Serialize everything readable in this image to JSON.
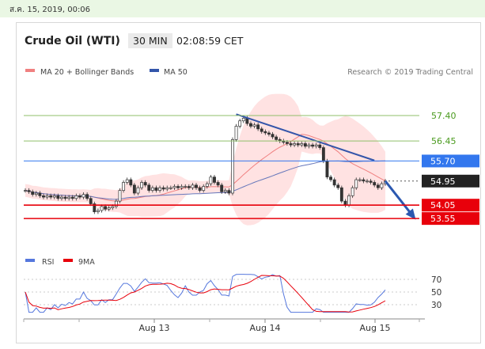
{
  "date_stamp": "ส.ค. 15, 2019, 00:06",
  "header": {
    "title": "Crude Oil (WTI)",
    "timeframe": "30 MIN",
    "clock": "02:08:59 CET"
  },
  "legend": {
    "ma20": "MA 20 + Bollinger Bands",
    "ma50": "MA 50",
    "credit": "Research © 2019 Trading Central"
  },
  "rsi_legend": {
    "rsi": "RSI",
    "ma9": "9MA"
  },
  "colors": {
    "resistance": "#8fbf6a",
    "pivot": "#3377ee",
    "support": "#e8000b",
    "current": "#222222",
    "bands": "#ffd8d8",
    "ma20": "#f08080",
    "ma50": "#6677bb",
    "trend": "#3355aa"
  },
  "chart_data": [
    {
      "type": "candlestick",
      "title": "Crude Oil (WTI)",
      "levels": [
        {
          "value": 57.4,
          "label": "57.40",
          "kind": "resistance"
        },
        {
          "value": 56.45,
          "label": "56.45",
          "kind": "resistance"
        },
        {
          "value": 55.7,
          "label": "55.70",
          "kind": "pivot"
        },
        {
          "value": 54.95,
          "label": "54.95",
          "kind": "current"
        },
        {
          "value": 54.05,
          "label": "54.05",
          "kind": "support"
        },
        {
          "value": 53.55,
          "label": "53.55",
          "kind": "support"
        }
      ],
      "x_tick_labels": [
        "Aug 13",
        "Aug 14",
        "Aug 15"
      ],
      "close_series": [
        54.6,
        54.55,
        54.45,
        54.5,
        54.4,
        54.35,
        54.4,
        54.35,
        54.4,
        54.3,
        54.35,
        54.3,
        54.35,
        54.3,
        54.4,
        54.35,
        54.45,
        54.3,
        54.1,
        53.8,
        53.85,
        54.0,
        53.9,
        53.95,
        54.0,
        54.2,
        54.6,
        54.9,
        55.0,
        54.8,
        54.5,
        54.7,
        54.9,
        54.8,
        54.6,
        54.7,
        54.6,
        54.7,
        54.65,
        54.7,
        54.7,
        54.75,
        54.7,
        54.75,
        54.75,
        54.7,
        54.8,
        54.7,
        54.6,
        54.75,
        54.85,
        55.1,
        54.9,
        54.8,
        54.55,
        54.6,
        54.5,
        56.5,
        57.0,
        57.2,
        57.3,
        57.1,
        57.0,
        57.05,
        56.9,
        56.8,
        56.75,
        56.7,
        56.6,
        56.5,
        56.45,
        56.4,
        56.35,
        56.3,
        56.35,
        56.3,
        56.35,
        56.25,
        56.3,
        56.25,
        56.3,
        56.2,
        55.7,
        55.1,
        55.0,
        54.8,
        54.7,
        54.2,
        54.05,
        54.4,
        54.7,
        55.0,
        55.0,
        54.95,
        54.95,
        54.9,
        54.8,
        54.7,
        54.85,
        54.95
      ],
      "y_range": [
        52.4,
        58.7
      ]
    },
    {
      "type": "line",
      "title": "RSI",
      "series": [
        {
          "name": "RSI"
        },
        {
          "name": "9MA"
        }
      ],
      "y_ticks": [
        30,
        50,
        70
      ],
      "y_range": [
        15,
        80
      ],
      "x_tick_labels": [
        "Aug 13",
        "Aug 14",
        "Aug 15"
      ]
    }
  ]
}
